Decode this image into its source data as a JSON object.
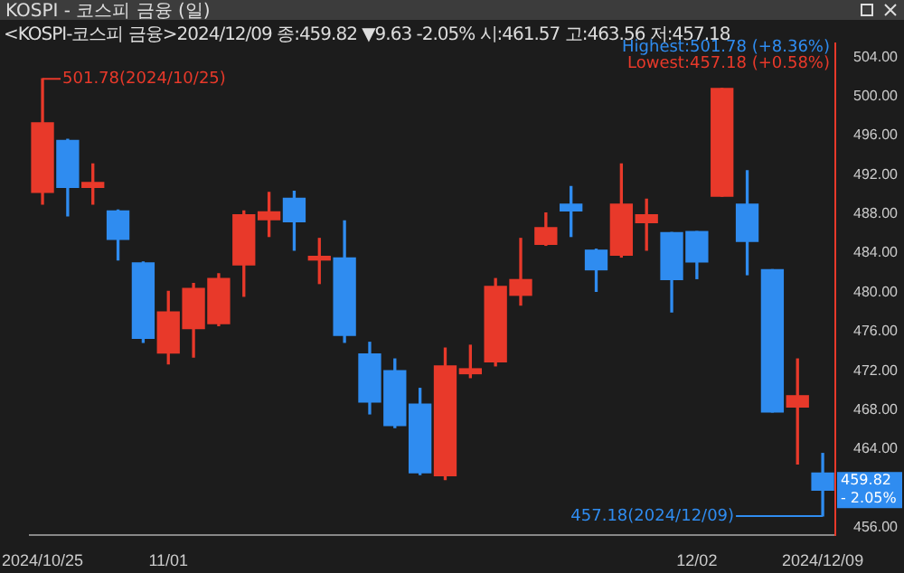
{
  "chart_data": {
    "type": "candlestick",
    "title": "KOSPI - 코스피 금융 (일)",
    "subtitle": "<KOSPI-코스피 금융>2024/12/09 종:459.82 ▼9.63 -2.05% 시:461.57 고:463.56 저:457.18",
    "categories": [
      "2024/10/25",
      null,
      null,
      null,
      null,
      "11/01",
      null,
      null,
      null,
      null,
      null,
      null,
      null,
      null,
      null,
      null,
      null,
      null,
      null,
      null,
      null,
      null,
      null,
      null,
      null,
      null,
      "12/02",
      null,
      null,
      null,
      null,
      "2024/12/09"
    ],
    "ohlc": [
      [
        490.2,
        501.78,
        489.0,
        497.3
      ],
      [
        495.5,
        495.6,
        487.8,
        490.7
      ],
      [
        490.7,
        493.1,
        489.0,
        491.2
      ],
      [
        488.3,
        488.4,
        483.3,
        485.4
      ],
      [
        483.0,
        483.1,
        474.9,
        475.3
      ],
      [
        473.8,
        480.1,
        472.7,
        478.0
      ],
      [
        476.3,
        480.9,
        473.4,
        480.4
      ],
      [
        476.8,
        481.9,
        476.6,
        481.4
      ],
      [
        482.8,
        488.3,
        479.6,
        487.9
      ],
      [
        487.4,
        490.2,
        485.7,
        488.2
      ],
      [
        489.6,
        490.3,
        484.3,
        487.2
      ],
      [
        483.3,
        485.5,
        480.9,
        483.6
      ],
      [
        483.5,
        487.3,
        474.9,
        475.6
      ],
      [
        473.7,
        474.9,
        467.6,
        468.8
      ],
      [
        472.0,
        473.2,
        466.2,
        466.4
      ],
      [
        468.6,
        470.2,
        461.4,
        461.6
      ],
      [
        461.3,
        474.3,
        460.9,
        472.5
      ],
      [
        471.7,
        474.6,
        471.3,
        472.2
      ],
      [
        472.9,
        481.4,
        472.5,
        480.6
      ],
      [
        479.7,
        485.5,
        478.7,
        481.3
      ],
      [
        484.9,
        488.1,
        484.8,
        486.6
      ],
      [
        489.0,
        490.8,
        485.7,
        488.3
      ],
      [
        484.3,
        484.4,
        480.1,
        482.3
      ],
      [
        483.8,
        493.1,
        483.6,
        489.0
      ],
      [
        487.1,
        489.5,
        484.3,
        487.9
      ],
      [
        486.1,
        486.1,
        478.0,
        481.3
      ],
      [
        486.2,
        486.2,
        481.4,
        483.1
      ],
      [
        489.8,
        500.8,
        489.8,
        500.8
      ],
      [
        489.0,
        492.4,
        481.8,
        485.2
      ],
      [
        482.3,
        482.3,
        467.8,
        467.8
      ],
      [
        468.3,
        473.2,
        462.5,
        469.45
      ],
      [
        461.57,
        463.56,
        457.18,
        459.82
      ]
    ],
    "colors": [
      "#e8392a",
      "#2f8cf0",
      "#e8392a",
      "#2f8cf0",
      "#2f8cf0",
      "#e8392a",
      "#e8392a",
      "#e8392a",
      "#e8392a",
      "#e8392a",
      "#2f8cf0",
      "#e8392a",
      "#2f8cf0",
      "#2f8cf0",
      "#2f8cf0",
      "#2f8cf0",
      "#e8392a",
      "#e8392a",
      "#e8392a",
      "#e8392a",
      "#e8392a",
      "#2f8cf0",
      "#2f8cf0",
      "#e8392a",
      "#e8392a",
      "#2f8cf0",
      "#2f8cf0",
      "#e8392a",
      "#2f8cf0",
      "#2f8cf0",
      "#e8392a",
      "#2f8cf0"
    ],
    "ylim": [
      455.2,
      505.4
    ],
    "yticks": [
      {
        "value": 456,
        "label": "456.00"
      },
      {
        "value": 464,
        "label": "464.00"
      },
      {
        "value": 468,
        "label": "468.00"
      },
      {
        "value": 472,
        "label": "472.00"
      },
      {
        "value": 476,
        "label": "476.00"
      },
      {
        "value": 480,
        "label": "480.00"
      },
      {
        "value": 484,
        "label": "484.00"
      },
      {
        "value": 488,
        "label": "488.00"
      },
      {
        "value": 492,
        "label": "492.00"
      },
      {
        "value": 496,
        "label": "496.00"
      },
      {
        "value": 500,
        "label": "500.00"
      },
      {
        "value": 504,
        "label": "504.00"
      }
    ],
    "annotations": [
      {
        "text": "501.78(2024/10/25)",
        "x": "2024/10/25",
        "y": 501.78
      },
      {
        "text": "457.18(2024/12/09)",
        "x": "2024/12/09",
        "y": 457.18
      },
      "Highest:501.78 (+8.36%)",
      "Lowest:457.18 (+0.58%)",
      "459.82 - 2.05%"
    ],
    "legend": false
  }
}
